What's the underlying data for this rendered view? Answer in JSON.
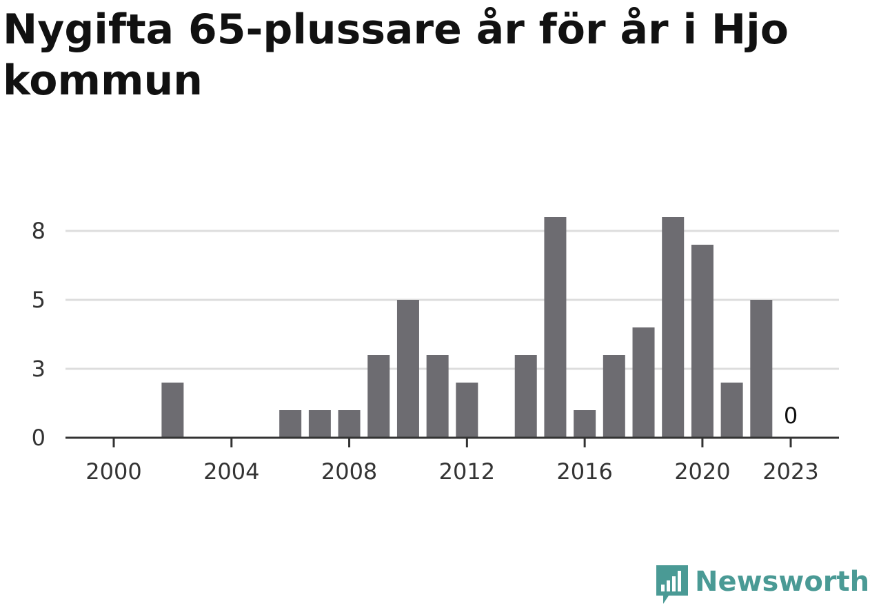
{
  "title": "Nygifta 65-plussare år för år i Hjo kommun",
  "brand": {
    "name": "Newsworthy",
    "color": "#4a9a95",
    "icon": "bar-chart-speech-bubble-icon"
  },
  "colors": {
    "bar": "#6d6c71",
    "grid": "#dddddd",
    "axis": "#333333"
  },
  "chart_data": {
    "type": "bar",
    "title": "Nygifta 65-plussare år för år i Hjo kommun",
    "xlabel": "",
    "ylabel": "",
    "categories": [
      "2000",
      "2001",
      "2002",
      "2003",
      "2004",
      "2005",
      "2006",
      "2007",
      "2008",
      "2009",
      "2010",
      "2011",
      "2012",
      "2013",
      "2014",
      "2015",
      "2016",
      "2017",
      "2018",
      "2019",
      "2020",
      "2021",
      "2022",
      "2023"
    ],
    "values": [
      0,
      0,
      2,
      0,
      0,
      0,
      1,
      1,
      1,
      3,
      5,
      3,
      2,
      0,
      3,
      8,
      1,
      3,
      4,
      8,
      7,
      2,
      5,
      0
    ],
    "x_tick_labels": [
      "2000",
      "2004",
      "2008",
      "2012",
      "2016",
      "2020",
      "2023"
    ],
    "y_ticks": [
      0,
      3,
      5,
      8
    ],
    "ylim": [
      0,
      8
    ],
    "grid": true,
    "annotations": [
      {
        "category": "2023",
        "text": "0"
      }
    ]
  }
}
